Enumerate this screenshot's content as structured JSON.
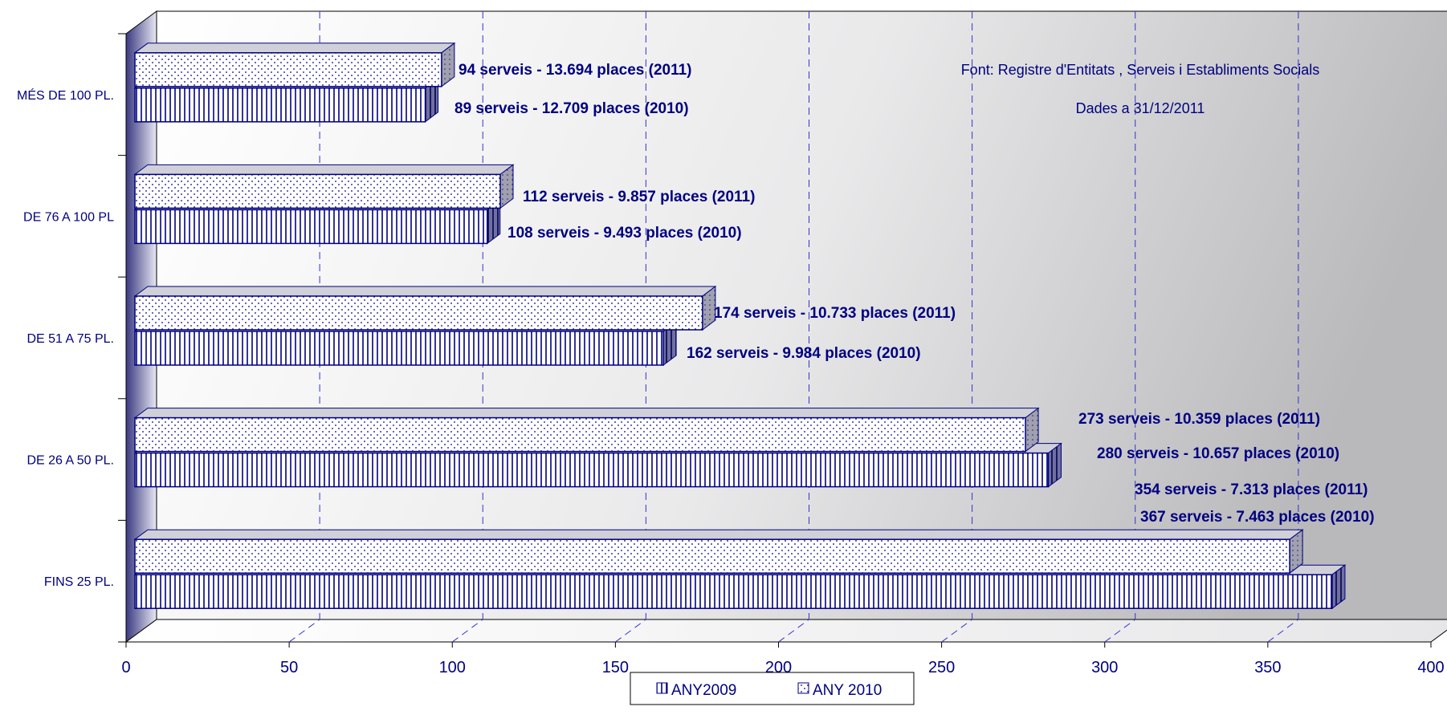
{
  "chart_data": {
    "type": "bar",
    "orientation": "horizontal",
    "categories": [
      "MÉS DE 100 PL.",
      "DE 76 A 100 PL",
      "DE 51 A 75 PL.",
      "DE 26 A 50 PL.",
      "FINS 25 PL."
    ],
    "series": [
      {
        "name": "ANY2009",
        "values": [
          89,
          108,
          162,
          280,
          367
        ],
        "pattern": "vertical-lines"
      },
      {
        "name": "ANY 2010",
        "values": [
          94,
          112,
          174,
          273,
          354
        ],
        "pattern": "dots"
      }
    ],
    "xlim": [
      0,
      400
    ],
    "xticks": [
      "0",
      "50",
      "100",
      "150",
      "200",
      "250",
      "300",
      "350",
      "400"
    ],
    "data_labels": [
      {
        "category": "MÉS DE 100 PL.",
        "label_2011": "94 serveis - 13.694 places (2011)",
        "label_2010": "89 serveis - 12.709 places (2010)"
      },
      {
        "category": "DE 76 A 100 PL",
        "label_2011": "112 serveis - 9.857 places (2011)",
        "label_2010": "108 serveis - 9.493 places (2010)"
      },
      {
        "category": "DE 51 A 75 PL.",
        "label_2011": "174 serveis - 10.733 places (2011)",
        "label_2010": "162 serveis - 9.984 places (2010)"
      },
      {
        "category": "DE 26 A 50 PL.",
        "label_2011": "273 serveis - 10.359 places (2011)",
        "label_2010": "280 serveis - 10.657 places (2010)"
      },
      {
        "category": "FINS 25 PL.",
        "label_2011": "354 serveis  -  7.313 places (2011)",
        "label_2010": "367 serveis  -  7.463 places (2010)"
      }
    ],
    "annotations": [
      "Font: Registre d'Entitats , Serveis i Establiments Socials",
      "Dades a 31/12/2011"
    ],
    "grid": true,
    "legend_position": "bottom",
    "colors": {
      "bar_outline": "#000080",
      "axis_text": "#000080",
      "grid": "#3333cc"
    }
  }
}
